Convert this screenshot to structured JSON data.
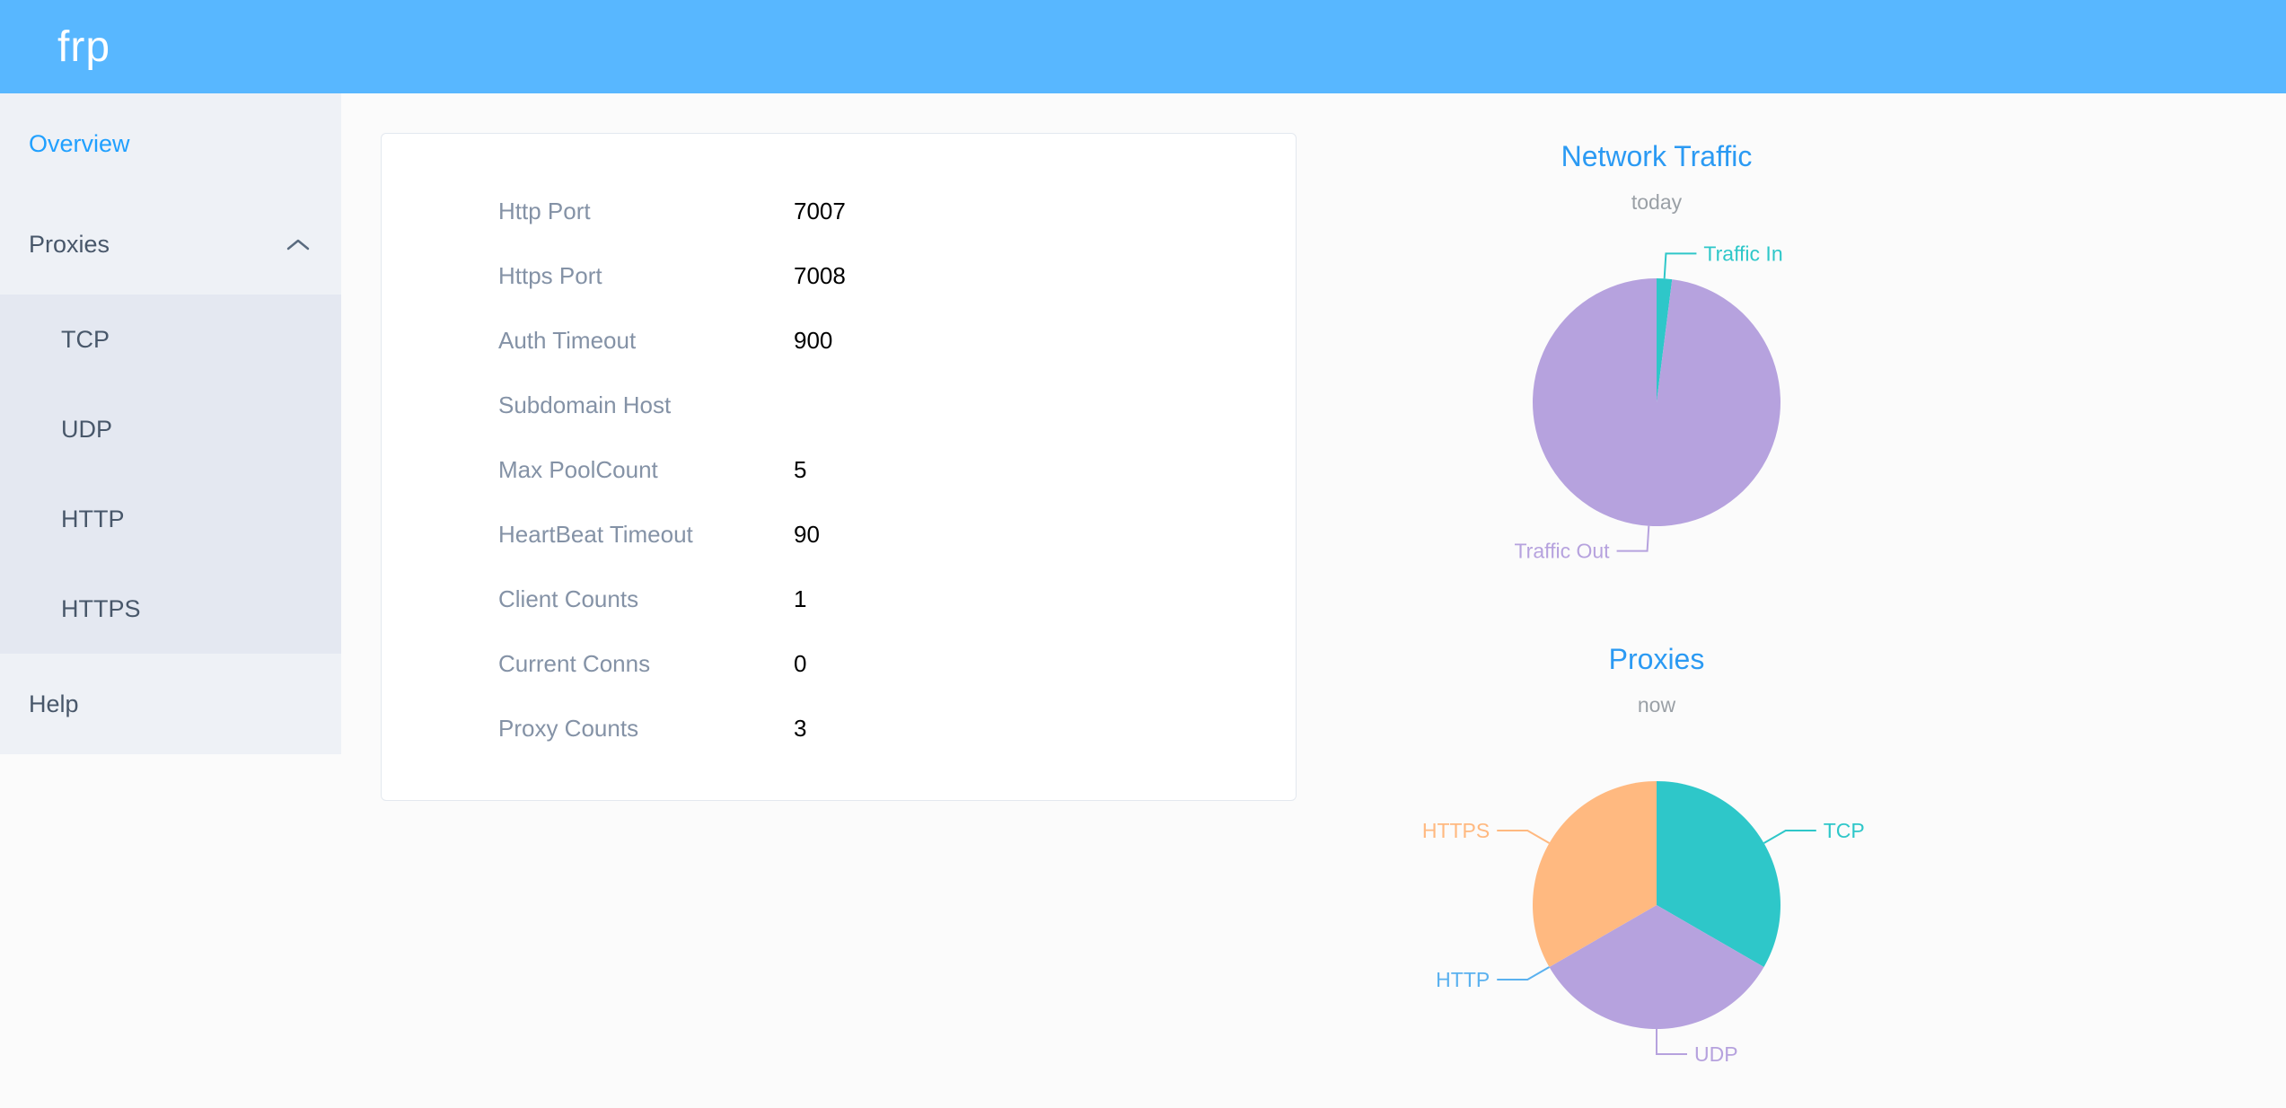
{
  "header": {
    "logo_text": "frp"
  },
  "sidebar": {
    "overview_label": "Overview",
    "proxies_label": "Proxies",
    "proxy_types": [
      "TCP",
      "UDP",
      "HTTP",
      "HTTPS"
    ],
    "help_label": "Help"
  },
  "server_info": {
    "rows": [
      {
        "label": "Http Port",
        "value": "7007"
      },
      {
        "label": "Https Port",
        "value": "7008"
      },
      {
        "label": "Auth Timeout",
        "value": "900"
      },
      {
        "label": "Subdomain Host",
        "value": ""
      },
      {
        "label": "Max PoolCount",
        "value": "5"
      },
      {
        "label": "HeartBeat Timeout",
        "value": "90"
      },
      {
        "label": "Client Counts",
        "value": "1"
      },
      {
        "label": "Current Conns",
        "value": "0"
      },
      {
        "label": "Proxy Counts",
        "value": "3"
      }
    ]
  },
  "chart_data": [
    {
      "type": "pie",
      "title": "Network Traffic",
      "subtitle": "today",
      "legend_position": "none",
      "series": [
        {
          "name": "Traffic In",
          "value": 2,
          "color": "#2ec7c9"
        },
        {
          "name": "Traffic Out",
          "value": 98,
          "color": "#b6a2de"
        }
      ]
    },
    {
      "type": "pie",
      "title": "Proxies",
      "subtitle": "now",
      "legend_position": "none",
      "series": [
        {
          "name": "TCP",
          "value": 1,
          "color": "#2ec7c9"
        },
        {
          "name": "UDP",
          "value": 1,
          "color": "#b6a2de"
        },
        {
          "name": "HTTP",
          "value": 0,
          "color": "#5ab1ef"
        },
        {
          "name": "HTTPS",
          "value": 1,
          "color": "#ffb980"
        }
      ]
    }
  ],
  "colors": {
    "header_bg": "#58b7ff",
    "sidebar_bg": "#eef1f6",
    "submenu_bg": "#e4e8f1",
    "active_menu": "#20a0ff",
    "chart_title": "#2b9af3"
  }
}
